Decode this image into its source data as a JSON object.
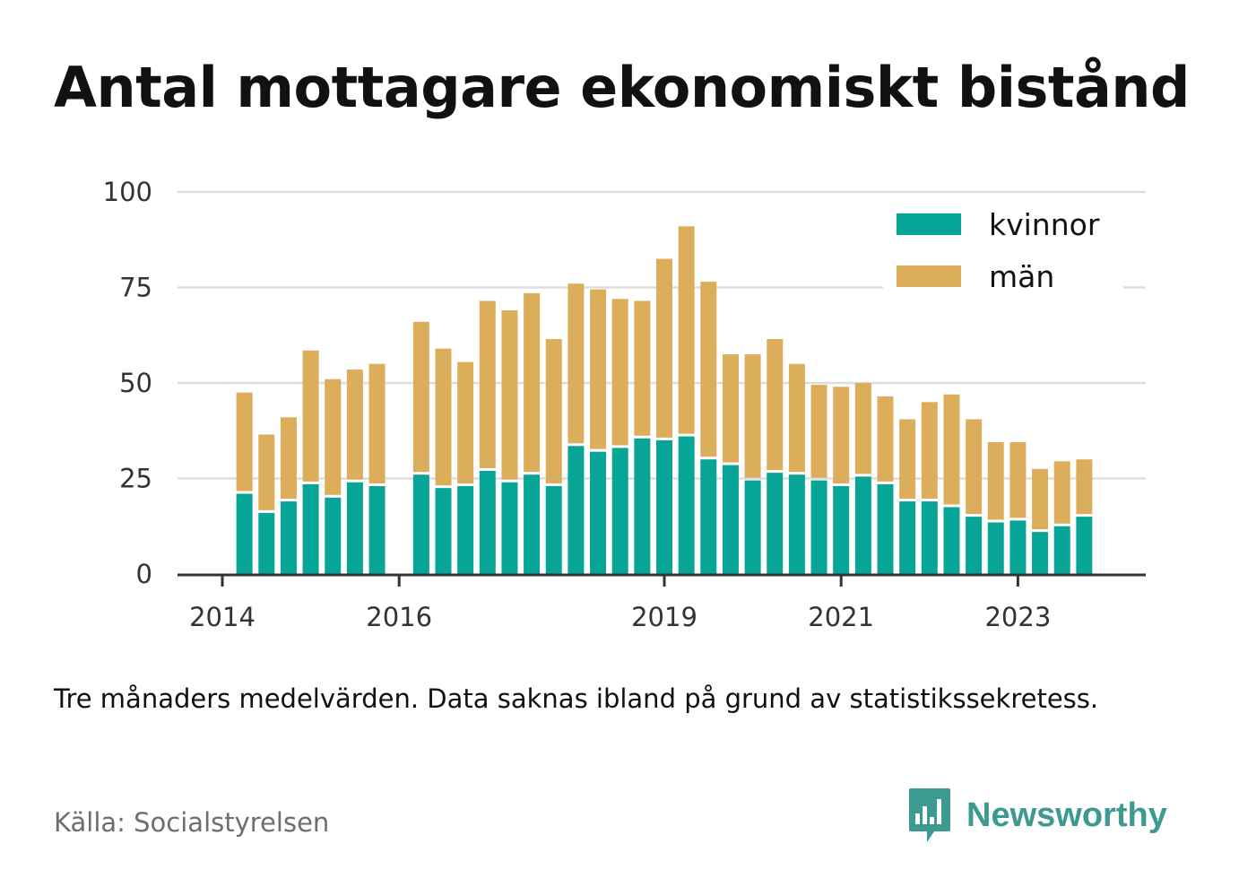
{
  "title": "Antal mottagare ekonomiskt bistånd",
  "note": "Tre månaders medelvärden. Data saknas ibland på grund av statistikssekretess.",
  "source": "Källa: Socialstyrelsen",
  "brand": {
    "name": "Newsworthy",
    "icon": "newsworthy-logo-icon",
    "color": "#3d9a91"
  },
  "colors": {
    "kvinnor": "#06a598",
    "man": "#dcae5b",
    "grid": "#dddddd",
    "axis": "#333333"
  },
  "chart_data": {
    "type": "bar",
    "stacked": true,
    "ylim": [
      0,
      100
    ],
    "yticks": [
      0,
      25,
      50,
      75,
      100
    ],
    "xticks": [
      {
        "label": "2014",
        "pos": 0
      },
      {
        "label": "2016",
        "pos": 8
      },
      {
        "label": "2019",
        "pos": 20
      },
      {
        "label": "2021",
        "pos": 28
      },
      {
        "label": "2023",
        "pos": 36
      }
    ],
    "grid": true,
    "legend_position": "top-right",
    "series": [
      {
        "name": "kvinnor",
        "values": [
          null,
          21,
          16,
          19,
          23.5,
          20,
          24,
          23,
          null,
          26,
          22.5,
          23,
          27,
          24,
          26,
          23,
          33.5,
          32,
          33,
          35.5,
          35,
          36,
          30,
          28.5,
          24.5,
          26.5,
          26,
          24.5,
          23,
          25.5,
          23.5,
          19,
          19,
          17.5,
          15,
          13.5,
          14,
          11,
          12.5,
          15
        ]
      },
      {
        "name": "män",
        "values": [
          null,
          26.5,
          20.5,
          22,
          35,
          31,
          29.5,
          32,
          null,
          40,
          36.5,
          32.5,
          44.5,
          45,
          47.5,
          38.5,
          42.5,
          42.5,
          39,
          36,
          47.5,
          55,
          46.5,
          29,
          33,
          35,
          29,
          25,
          26,
          24.5,
          23,
          21.5,
          26,
          29.5,
          25.5,
          21,
          20.5,
          16.5,
          17,
          15
        ]
      }
    ]
  }
}
